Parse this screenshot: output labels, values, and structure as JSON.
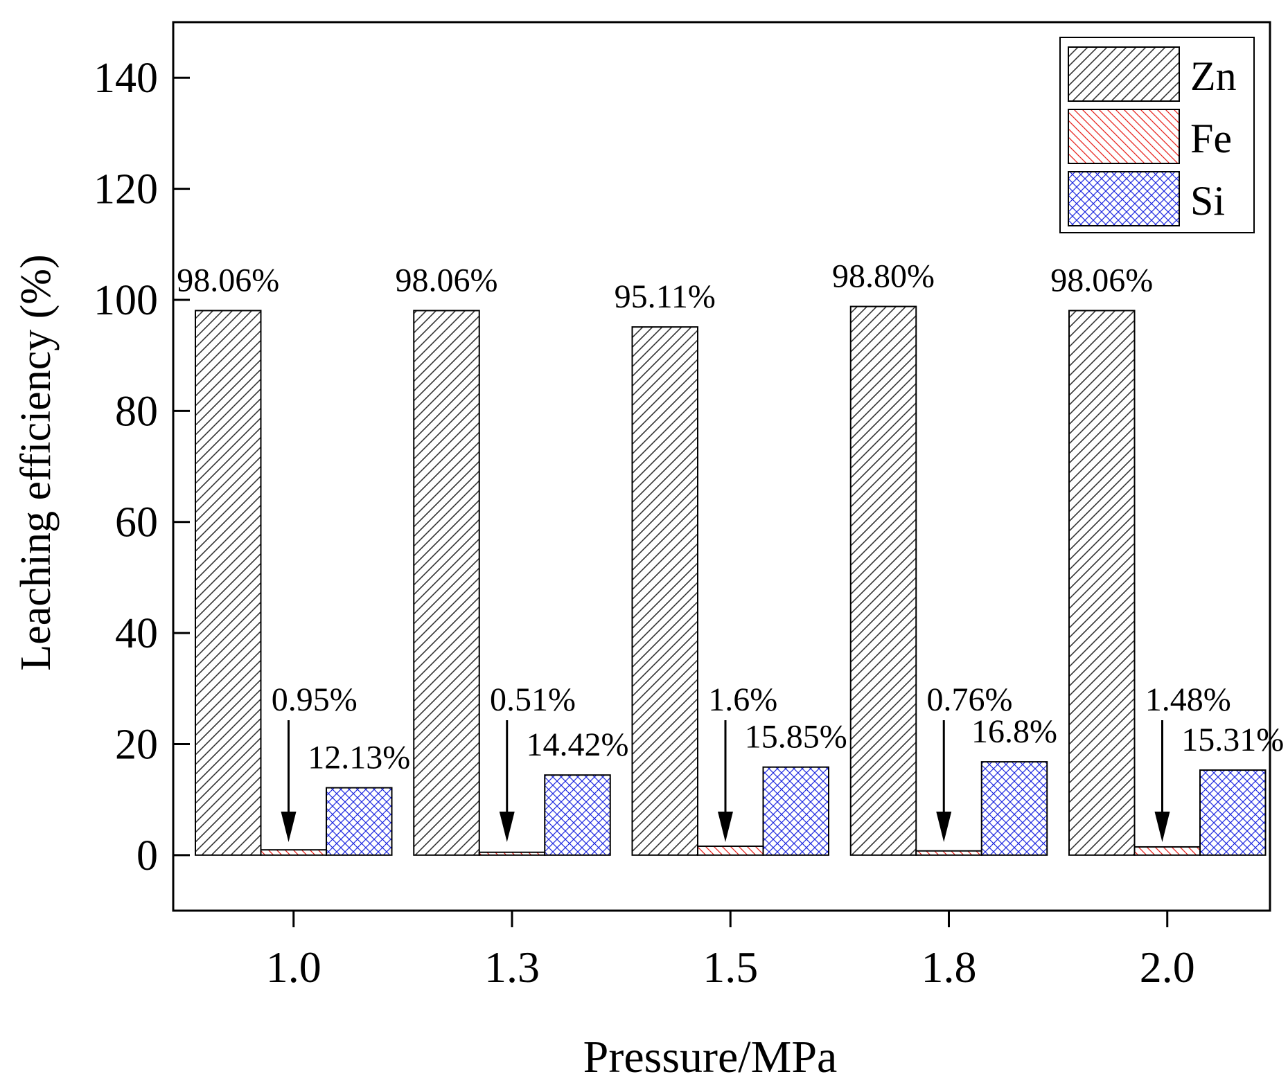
{
  "chart_data": {
    "type": "bar",
    "title": "",
    "xlabel": "Pressure/MPa",
    "ylabel": "Leaching efficiency (%)",
    "ylim": [
      -10,
      150
    ],
    "yticks": [
      0,
      20,
      40,
      60,
      80,
      100,
      120,
      140
    ],
    "ytick_labels": [
      "0",
      "20",
      "40",
      "60",
      "80",
      "100",
      "120",
      "140"
    ],
    "categories": [
      "1.0",
      "1.3",
      "1.5",
      "1.8",
      "2.0"
    ],
    "legend_position": "top-right",
    "series": [
      {
        "name": "Zn",
        "color": "#333333",
        "pattern": "diagonal",
        "values": [
          98.06,
          98.06,
          95.11,
          98.8,
          98.06
        ],
        "labels": [
          "98.06%",
          "98.06%",
          "95.11%",
          "98.80%",
          "98.06%"
        ]
      },
      {
        "name": "Fe",
        "color": "#e8251f",
        "pattern": "back-diagonal",
        "values": [
          0.95,
          0.51,
          1.6,
          0.76,
          1.48
        ],
        "labels": [
          "0.95%",
          "0.51%",
          "1.6%",
          "0.76%",
          "1.48%"
        ]
      },
      {
        "name": "Si",
        "color": "#1f2ae0",
        "pattern": "crosshatch",
        "values": [
          12.13,
          14.42,
          15.85,
          16.8,
          15.31
        ],
        "labels": [
          "12.13%",
          "14.42%",
          "15.85%",
          "16.8%",
          "15.31%"
        ]
      }
    ]
  }
}
